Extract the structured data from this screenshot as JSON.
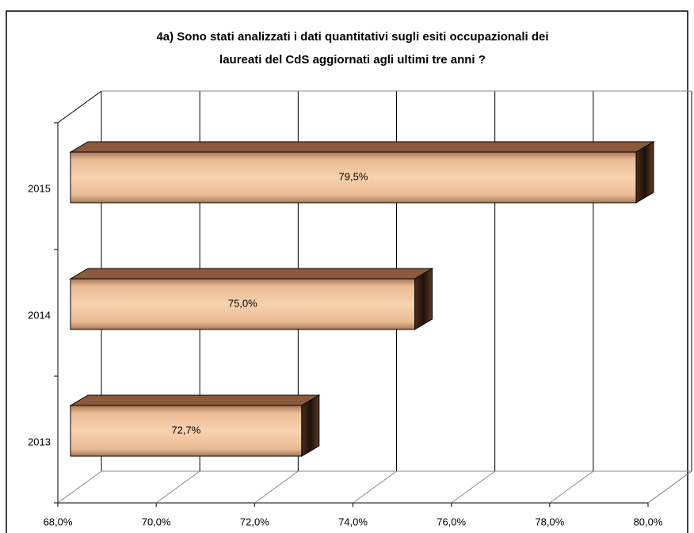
{
  "chart_data": {
    "type": "bar3d_horizontal",
    "title": [
      "4a) Sono stati analizzati i dati quantitativi sugli esiti occupazionali dei",
      "laureati del CdS aggiornati agli ultimi tre anni  ?"
    ],
    "categories": [
      "2013",
      "2014",
      "2015"
    ],
    "values": [
      72.7,
      75.0,
      79.5
    ],
    "value_labels": [
      "72,7%",
      "75,0%",
      "79,5%"
    ],
    "color": "#f2c49c",
    "xlim": [
      68,
      80
    ],
    "xticks": [
      {
        "value": 68,
        "label": "68,0%"
      },
      {
        "value": 70,
        "label": "70,0%"
      },
      {
        "value": 72,
        "label": "72,0%"
      },
      {
        "value": 74,
        "label": "74,0%"
      },
      {
        "value": 76,
        "label": "76,0%"
      },
      {
        "value": 78,
        "label": "78,0%"
      },
      {
        "value": 80,
        "label": "80,0%"
      }
    ],
    "grid": true
  }
}
